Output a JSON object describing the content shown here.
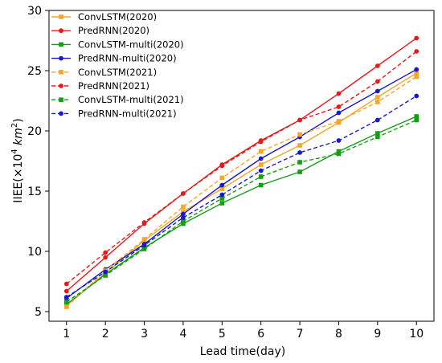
{
  "chart_data": {
    "type": "line",
    "xlabel": "Lead time(day)",
    "ylabel": {
      "prefix": "IIEE(×10",
      "exp": "4",
      "unit": "km",
      "unit_exp": "2",
      "suffix": ")"
    },
    "x": [
      1,
      2,
      3,
      4,
      5,
      6,
      7,
      8,
      9,
      10
    ],
    "xlim": [
      0.55,
      10.45
    ],
    "ylim": [
      4.2,
      30
    ],
    "xticks": [
      1,
      2,
      3,
      4,
      5,
      6,
      7,
      8,
      9,
      10
    ],
    "yticks": [
      5,
      10,
      15,
      20,
      25,
      30
    ],
    "grid": false,
    "legend_position": "top-left",
    "series": [
      {
        "name": "ConvLSTM(2020)",
        "color": "#f5a623",
        "dash": "solid",
        "values": [
          5.5,
          8.2,
          10.9,
          13.3,
          15.2,
          17.2,
          18.8,
          20.7,
          22.8,
          24.8
        ]
      },
      {
        "name": "PredRNN(2020)",
        "color": "#e8191a",
        "dash": "solid",
        "values": [
          6.7,
          9.5,
          12.3,
          14.8,
          17.2,
          19.2,
          20.9,
          23.1,
          25.4,
          27.7
        ]
      },
      {
        "name": "ConvLSTM-multi(2020)",
        "color": "#12a012",
        "dash": "solid",
        "values": [
          5.6,
          8.1,
          10.3,
          12.3,
          14.0,
          15.5,
          16.6,
          18.3,
          19.8,
          21.2
        ]
      },
      {
        "name": "PredRNN-multi(2020)",
        "color": "#1818d0",
        "dash": "solid",
        "values": [
          6.1,
          8.5,
          10.6,
          13.1,
          15.5,
          17.7,
          19.5,
          21.5,
          23.3,
          25.1
        ]
      },
      {
        "name": "ConvLSTM(2021)",
        "color": "#f5a623",
        "dash": "dashed",
        "values": [
          5.4,
          8.4,
          11.0,
          13.7,
          16.1,
          18.3,
          19.7,
          20.8,
          22.4,
          24.5
        ]
      },
      {
        "name": "PredRNN(2021)",
        "color": "#e8191a",
        "dash": "dashed",
        "values": [
          7.3,
          9.9,
          12.4,
          14.8,
          17.1,
          19.1,
          20.9,
          22.0,
          24.1,
          26.6
        ]
      },
      {
        "name": "ConvLSTM-multi(2021)",
        "color": "#12a012",
        "dash": "dashed",
        "values": [
          5.8,
          8.0,
          10.2,
          12.5,
          14.4,
          16.2,
          17.4,
          18.1,
          19.5,
          20.9
        ]
      },
      {
        "name": "PredRNN-multi(2021)",
        "color": "#1818d0",
        "dash": "dashed",
        "values": [
          6.2,
          8.3,
          10.5,
          12.8,
          14.7,
          16.7,
          18.2,
          19.2,
          20.9,
          22.9
        ]
      }
    ]
  }
}
